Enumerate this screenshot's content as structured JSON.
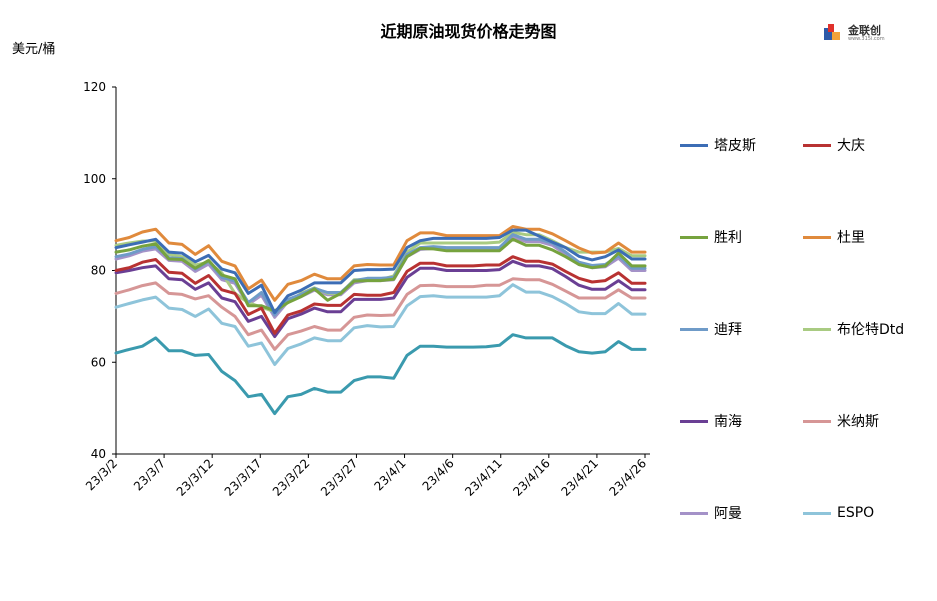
{
  "title": "近期原油现货价格走势图",
  "unit_label": "美元/桶",
  "logo": {
    "text": "金联创",
    "sub": "www.315i.com"
  },
  "chart_data": {
    "type": "line",
    "ylim": [
      40,
      120
    ],
    "yticks": [
      40,
      60,
      80,
      100,
      120
    ],
    "grid": false,
    "legend_position": "right",
    "x_tick_labels": [
      "23/3/2",
      "23/3/7",
      "23/3/12",
      "23/3/17",
      "23/3/22",
      "23/3/27",
      "23/4/1",
      "23/4/6",
      "23/4/11",
      "23/4/16",
      "23/4/21",
      "23/4/26"
    ],
    "x": [
      "3/2",
      "3/3",
      "3/6",
      "3/7",
      "3/8",
      "3/9",
      "3/10",
      "3/13",
      "3/14",
      "3/15",
      "3/16",
      "3/17",
      "3/20",
      "3/21",
      "3/22",
      "3/23",
      "3/24",
      "3/27",
      "3/28",
      "3/29",
      "3/30",
      "3/31",
      "4/3",
      "4/4",
      "4/5",
      "4/6",
      "4/7",
      "4/10",
      "4/11",
      "4/12",
      "4/13",
      "4/14",
      "4/17",
      "4/18",
      "4/19",
      "4/20",
      "4/21",
      "4/24",
      "4/25",
      "4/26",
      "4/27"
    ],
    "series": [
      {
        "name": "塔皮斯",
        "color": "#3C6DB5",
        "values": [
          85.0,
          85.6,
          86.2,
          86.8,
          84.0,
          83.8,
          81.9,
          83.3,
          80.3,
          79.5,
          75.0,
          76.8,
          70.8,
          74.5,
          75.7,
          77.3,
          77.3,
          77.3,
          80.0,
          80.2,
          80.2,
          80.3,
          85.0,
          86.5,
          87.0,
          87.0,
          87.0,
          87.0,
          87.0,
          87.2,
          88.8,
          88.8,
          87.5,
          86.2,
          85.0,
          83.1,
          82.3,
          83.0,
          84.5,
          82.5,
          82.5
        ]
      },
      {
        "name": "大庆",
        "color": "#B83232",
        "values": [
          80.0,
          80.6,
          81.8,
          82.4,
          79.6,
          79.4,
          77.2,
          78.9,
          75.8,
          75.0,
          70.4,
          71.8,
          66.3,
          70.3,
          71.2,
          72.7,
          72.4,
          72.4,
          74.8,
          74.6,
          74.6,
          75.2,
          79.8,
          81.6,
          81.6,
          81.0,
          81.0,
          81.0,
          81.2,
          81.2,
          83.0,
          82.0,
          82.0,
          81.4,
          79.8,
          78.3,
          77.5,
          77.8,
          79.5,
          77.2,
          77.2
        ]
      },
      {
        "name": "胜利",
        "color": "#76A33E",
        "values": [
          84.0,
          84.5,
          85.3,
          85.8,
          82.5,
          82.4,
          80.5,
          82.2,
          79.0,
          78.2,
          72.3,
          72.3,
          71.2,
          73.0,
          74.3,
          76.0,
          73.5,
          75.0,
          77.7,
          77.8,
          77.8,
          78.1,
          83.0,
          84.8,
          84.7,
          84.3,
          84.3,
          84.3,
          84.3,
          84.3,
          86.8,
          85.5,
          85.5,
          84.5,
          83.0,
          81.3,
          80.6,
          81.0,
          83.8,
          81.0,
          81.0
        ]
      },
      {
        "name": "杜里",
        "color": "#E08A3C",
        "values": [
          86.5,
          87.2,
          88.4,
          89.0,
          86.0,
          85.7,
          83.5,
          85.4,
          82.0,
          81.0,
          76.0,
          77.9,
          73.5,
          77.0,
          77.8,
          79.2,
          78.2,
          78.2,
          81.0,
          81.3,
          81.2,
          81.2,
          86.5,
          88.2,
          88.2,
          87.6,
          87.6,
          87.6,
          87.6,
          87.6,
          89.6,
          89.0,
          89.0,
          88.0,
          86.5,
          84.9,
          83.8,
          84.0,
          86.0,
          84.0,
          84.0
        ]
      },
      {
        "name": "迪拜",
        "color": "#6F9BC8",
        "values": [
          83.0,
          83.6,
          84.6,
          85.2,
          82.8,
          82.6,
          80.3,
          82.0,
          78.5,
          77.7,
          73.0,
          75.2,
          70.3,
          73.7,
          74.8,
          76.1,
          75.2,
          75.2,
          77.8,
          78.3,
          78.3,
          78.5,
          83.5,
          85.0,
          85.2,
          85.0,
          85.0,
          85.0,
          85.0,
          85.0,
          87.8,
          86.8,
          86.8,
          86.0,
          84.0,
          81.8,
          81.1,
          81.3,
          83.2,
          80.5,
          80.5
        ]
      },
      {
        "name": "布伦特Dtd",
        "color": "#A9CB82",
        "values": [
          85.5,
          86.0,
          86.4,
          86.5,
          83.5,
          83.0,
          81.2,
          81.8,
          79.5,
          75.0,
          73.0,
          72.0,
          71.0,
          73.0,
          75.0,
          76.2,
          75.0,
          75.0,
          78.0,
          78.0,
          78.0,
          78.8,
          84.0,
          86.0,
          86.0,
          86.0,
          86.0,
          86.0,
          86.0,
          86.2,
          88.3,
          87.8,
          87.8,
          86.5,
          85.0,
          84.0,
          84.0,
          84.0,
          84.8,
          83.2,
          83.2
        ]
      },
      {
        "name": "南海",
        "color": "#6A3F94",
        "values": [
          79.5,
          80.0,
          80.6,
          81.0,
          78.2,
          78.0,
          75.9,
          77.3,
          74.0,
          73.2,
          68.9,
          70.0,
          65.6,
          69.5,
          70.5,
          71.8,
          71.0,
          71.0,
          73.7,
          73.7,
          73.7,
          74.0,
          78.5,
          80.5,
          80.5,
          80.0,
          80.0,
          80.0,
          80.0,
          80.2,
          82.0,
          81.0,
          81.0,
          80.4,
          78.7,
          76.8,
          75.9,
          75.9,
          77.8,
          75.8,
          75.8
        ]
      },
      {
        "name": "米纳斯",
        "color": "#D69696",
        "values": [
          75.0,
          75.8,
          76.7,
          77.3,
          75.0,
          74.8,
          73.8,
          74.5,
          72.0,
          70.0,
          66.0,
          67.0,
          62.8,
          66.0,
          66.8,
          67.8,
          67.0,
          67.0,
          69.8,
          70.3,
          70.2,
          70.3,
          74.8,
          76.7,
          76.8,
          76.5,
          76.5,
          76.5,
          76.8,
          76.8,
          78.2,
          78.0,
          78.0,
          77.0,
          75.5,
          74.0,
          74.0,
          74.0,
          75.8,
          74.0,
          74.0
        ]
      },
      {
        "name": "阿曼",
        "color": "#A492C8",
        "values": [
          82.5,
          83.2,
          84.2,
          84.7,
          82.2,
          82.0,
          79.8,
          81.4,
          78.0,
          77.2,
          72.6,
          74.6,
          69.8,
          73.2,
          74.3,
          75.7,
          74.7,
          74.7,
          77.3,
          77.8,
          77.8,
          78.0,
          83.0,
          84.6,
          84.8,
          84.5,
          84.5,
          84.5,
          84.5,
          84.5,
          87.3,
          86.3,
          86.3,
          85.5,
          83.5,
          81.3,
          80.6,
          80.8,
          82.7,
          80.0,
          80.0
        ]
      },
      {
        "name": "ESPO",
        "color": "#8EC4DA",
        "values": [
          72.0,
          72.8,
          73.6,
          74.2,
          71.8,
          71.5,
          70.0,
          71.6,
          68.5,
          67.8,
          63.5,
          64.2,
          59.5,
          63.0,
          64.0,
          65.3,
          64.7,
          64.7,
          67.5,
          68.0,
          67.7,
          67.8,
          72.3,
          74.3,
          74.5,
          74.2,
          74.2,
          74.2,
          74.2,
          74.5,
          76.9,
          75.3,
          75.3,
          74.3,
          72.8,
          71.0,
          70.6,
          70.6,
          72.8,
          70.5,
          70.5
        ]
      },
      {
        "name": "",
        "color": "#3A9AAE",
        "values": [
          62.0,
          62.8,
          63.5,
          65.3,
          62.5,
          62.5,
          61.5,
          61.7,
          58.0,
          56.0,
          52.5,
          53.0,
          48.8,
          52.5,
          53.0,
          54.3,
          53.5,
          53.5,
          56.0,
          56.8,
          56.8,
          56.5,
          61.5,
          63.5,
          63.5,
          63.3,
          63.3,
          63.3,
          63.4,
          63.7,
          66.0,
          65.3,
          65.3,
          65.3,
          63.6,
          62.3,
          62.0,
          62.3,
          64.5,
          62.8,
          62.8
        ]
      }
    ]
  }
}
